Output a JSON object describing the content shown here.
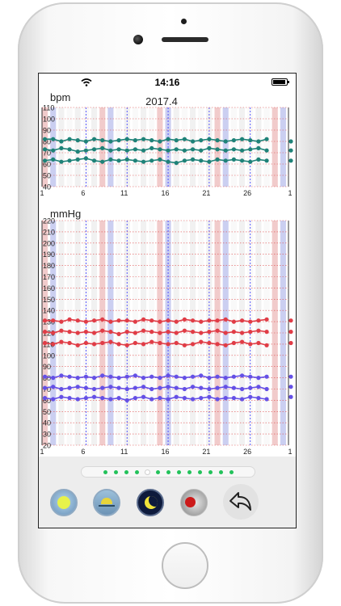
{
  "status_bar": {
    "time": "14:16"
  },
  "header": {
    "date": "2017.4"
  },
  "colors": {
    "heart_rate": "#1e8278",
    "blood_pressure_high": "#e03c46",
    "blood_pressure_low": "#6450e6",
    "weekend_red": "#e6a0a0",
    "weekend_blue": "#a0a8e6",
    "pager_dot": "#22c25a"
  },
  "chart_data": [
    {
      "type": "line",
      "ylabel": "bpm",
      "title": "2017.4",
      "ylim": [
        40,
        110
      ],
      "yticks": [
        40,
        50,
        60,
        70,
        80,
        90,
        100,
        110
      ],
      "x": [
        1,
        2,
        3,
        4,
        5,
        6,
        7,
        8,
        9,
        10,
        11,
        12,
        13,
        14,
        15,
        16,
        17,
        18,
        19,
        20,
        21,
        22,
        23,
        24,
        25,
        26,
        27,
        28,
        29,
        30
      ],
      "xticks": [
        "1",
        "6",
        "11",
        "16",
        "21",
        "26",
        "1"
      ],
      "grid": true,
      "series": [
        {
          "values": [
            82,
            82,
            80,
            82,
            81,
            80,
            82,
            81,
            80,
            81,
            82,
            81,
            82,
            81,
            80,
            82,
            81,
            82,
            80,
            81,
            82,
            81,
            80,
            81,
            82,
            81,
            80,
            82,
            81,
            80
          ]
        },
        {
          "values": [
            73,
            72,
            74,
            73,
            71,
            72,
            73,
            74,
            72,
            73,
            72,
            73,
            72,
            74,
            73,
            72,
            73,
            72,
            73,
            72,
            74,
            73,
            72,
            73,
            72,
            73,
            74,
            72,
            73,
            72
          ]
        },
        {
          "values": [
            63,
            64,
            62,
            63,
            64,
            65,
            63,
            62,
            64,
            63,
            64,
            63,
            62,
            63,
            64,
            62,
            61,
            63,
            64,
            63,
            62,
            64,
            63,
            64,
            63,
            62,
            64,
            63,
            62,
            63
          ]
        }
      ]
    },
    {
      "type": "line",
      "ylabel": "mmHg",
      "ylim": [
        20,
        220
      ],
      "yticks": [
        20,
        30,
        40,
        50,
        60,
        70,
        80,
        90,
        100,
        110,
        120,
        130,
        140,
        150,
        160,
        170,
        180,
        190,
        200,
        210,
        220
      ],
      "x": [
        1,
        2,
        3,
        4,
        5,
        6,
        7,
        8,
        9,
        10,
        11,
        12,
        13,
        14,
        15,
        16,
        17,
        18,
        19,
        20,
        21,
        22,
        23,
        24,
        25,
        26,
        27,
        28,
        29,
        30
      ],
      "xticks": [
        "1",
        "6",
        "11",
        "16",
        "21",
        "26",
        "1"
      ],
      "grid": true,
      "series": [
        {
          "values": [
            131,
            131,
            130,
            132,
            131,
            130,
            131,
            132,
            130,
            131,
            131,
            130,
            132,
            131,
            130,
            131,
            130,
            132,
            131,
            130,
            131,
            131,
            132,
            130,
            131,
            130,
            131,
            132,
            130,
            131
          ]
        },
        {
          "values": [
            121,
            120,
            122,
            121,
            120,
            121,
            120,
            122,
            121,
            119,
            121,
            120,
            122,
            121,
            120,
            121,
            120,
            122,
            121,
            120,
            121,
            122,
            120,
            121,
            120,
            121,
            122,
            121,
            120,
            121
          ]
        },
        {
          "values": [
            111,
            110,
            112,
            111,
            109,
            111,
            110,
            111,
            112,
            110,
            109,
            111,
            110,
            112,
            111,
            110,
            111,
            109,
            110,
            112,
            111,
            110,
            109,
            111,
            112,
            110,
            111,
            109,
            110,
            111
          ]
        },
        {
          "values": [
            81,
            80,
            82,
            81,
            80,
            81,
            80,
            82,
            81,
            80,
            81,
            82,
            80,
            81,
            80,
            82,
            81,
            80,
            81,
            82,
            80,
            81,
            80,
            81,
            82,
            81,
            80,
            81,
            82,
            81
          ]
        },
        {
          "values": [
            71,
            72,
            70,
            71,
            72,
            71,
            70,
            71,
            72,
            71,
            70,
            71,
            72,
            70,
            71,
            72,
            71,
            70,
            72,
            71,
            70,
            71,
            72,
            71,
            70,
            71,
            72,
            70,
            71,
            72
          ]
        },
        {
          "values": [
            62,
            61,
            63,
            62,
            61,
            62,
            63,
            62,
            61,
            62,
            60,
            62,
            63,
            61,
            62,
            61,
            63,
            62,
            61,
            62,
            63,
            61,
            62,
            62,
            61,
            63,
            62,
            61,
            62,
            63
          ]
        }
      ]
    }
  ],
  "pager": {
    "count": 13,
    "active_index": 4
  },
  "toolbar": {
    "buttons": [
      {
        "icon": "sun-icon"
      },
      {
        "icon": "sunset-icon"
      },
      {
        "icon": "moon-icon"
      },
      {
        "icon": "pill-icon"
      },
      {
        "icon": "back-arrow-icon"
      }
    ]
  }
}
